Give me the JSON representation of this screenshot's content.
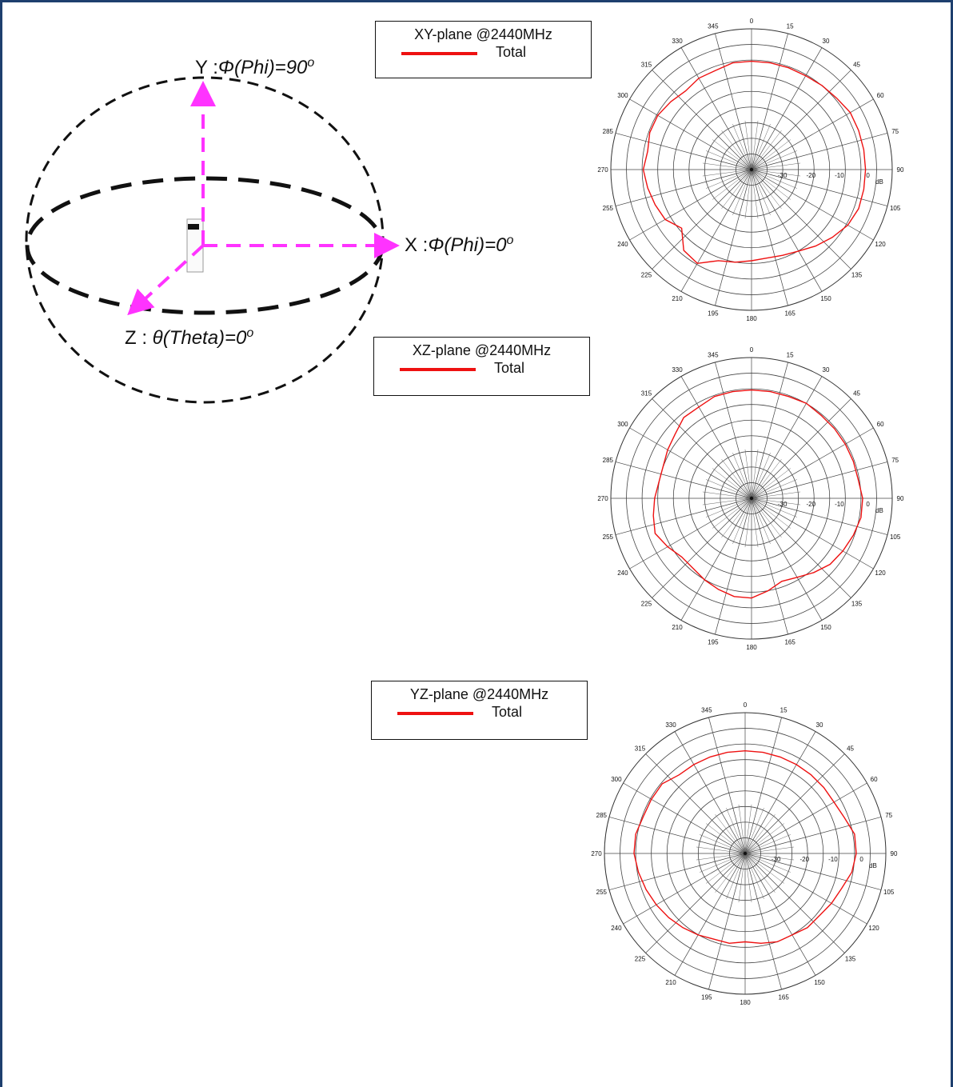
{
  "frame_color": "#1e3f6e",
  "diagram": {
    "y_axis_label": "Y :Φ(Phi)=90º",
    "x_axis_label": "X :Φ(Phi)=0º",
    "z_axis_label": "Z : θ(Theta)=0º",
    "arrow_color": "#ff33ff"
  },
  "chart_data": [
    {
      "type": "polar",
      "title": "XY-plane @2440MHz",
      "series": [
        {
          "name": "Total",
          "color": "#ee1111",
          "angles_deg": [
            0,
            10,
            20,
            30,
            40,
            50,
            60,
            70,
            80,
            90,
            100,
            110,
            120,
            130,
            140,
            150,
            160,
            170,
            180,
            190,
            200,
            210,
            220,
            230,
            240,
            250,
            260,
            270,
            280,
            290,
            300,
            310,
            320,
            330,
            340,
            350
          ],
          "values_db": [
            -2,
            -2,
            -2,
            -2,
            -1.5,
            -1,
            0,
            0,
            0,
            0,
            0,
            0,
            -1,
            -3,
            -5,
            -7,
            -8,
            -8.5,
            -8,
            -7,
            -6,
            -2,
            -3,
            -8,
            -5,
            -4,
            -3,
            -2,
            -3,
            -2,
            -2,
            -3,
            -4,
            -3,
            -3,
            -2
          ]
        }
      ],
      "radial_ticks": [
        -30,
        -20,
        -10,
        0
      ],
      "radial_unit": "dB",
      "r_min": -40,
      "r_max": 0,
      "angle_ticks": [
        "0",
        "15",
        "30",
        "45",
        "60",
        "75",
        "90",
        "105",
        "120",
        "135",
        "150",
        "165",
        "180",
        "195",
        "210",
        "225",
        "240",
        "255",
        "270",
        "285",
        "300",
        "315",
        "330",
        "345"
      ]
    },
    {
      "type": "polar",
      "title": "XZ-plane @2440MHz",
      "series": [
        {
          "name": "Total",
          "color": "#ee1111",
          "angles_deg": [
            0,
            10,
            20,
            30,
            40,
            50,
            60,
            70,
            80,
            90,
            100,
            110,
            120,
            130,
            140,
            150,
            160,
            170,
            180,
            190,
            200,
            210,
            220,
            230,
            240,
            250,
            260,
            270,
            280,
            290,
            300,
            310,
            320,
            330,
            340,
            350
          ],
          "values_db": [
            -2,
            -2,
            -2,
            -1.5,
            -2,
            -2,
            -2,
            -2,
            -2,
            -1,
            -1,
            -2,
            -3,
            -4,
            -6,
            -8,
            -9,
            -7,
            -5,
            -5,
            -6,
            -7,
            -8,
            -8,
            -6,
            -4,
            -5,
            -6,
            -7,
            -7,
            -6,
            -5,
            -3,
            -3,
            -2,
            -2
          ]
        }
      ],
      "radial_ticks": [
        -30,
        -20,
        -10,
        0
      ],
      "radial_unit": "dB",
      "r_min": -40,
      "r_max": 0,
      "angle_ticks": [
        "0",
        "15",
        "30",
        "45",
        "60",
        "75",
        "90",
        "105",
        "120",
        "135",
        "150",
        "165",
        "180",
        "195",
        "210",
        "225",
        "240",
        "255",
        "270",
        "285",
        "300",
        "315",
        "330",
        "345"
      ]
    },
    {
      "type": "polar",
      "title": "YZ-plane @2440MHz",
      "series": [
        {
          "name": "Total",
          "color": "#ee1111",
          "angles_deg": [
            0,
            10,
            20,
            30,
            40,
            50,
            60,
            70,
            80,
            90,
            100,
            110,
            120,
            130,
            140,
            150,
            160,
            170,
            180,
            190,
            200,
            210,
            220,
            230,
            240,
            250,
            260,
            270,
            280,
            290,
            300,
            310,
            320,
            330,
            340,
            350
          ],
          "values_db": [
            -4,
            -4,
            -4,
            -4,
            -4,
            -4,
            -4,
            -3,
            -1,
            -1,
            -2,
            -4,
            -5,
            -6,
            -6,
            -7,
            -7,
            -8,
            -9,
            -8,
            -8,
            -7,
            -6,
            -5,
            -4,
            -3,
            -2,
            -1,
            -1,
            -2,
            -2,
            -2,
            -4,
            -4,
            -4,
            -4
          ]
        }
      ],
      "radial_ticks": [
        -30,
        -20,
        -10,
        0
      ],
      "radial_unit": "dB",
      "r_min": -40,
      "r_max": 0,
      "angle_ticks": [
        "0",
        "15",
        "30",
        "45",
        "60",
        "75",
        "90",
        "105",
        "120",
        "135",
        "150",
        "165",
        "180",
        "195",
        "210",
        "225",
        "240",
        "255",
        "270",
        "285",
        "300",
        "315",
        "330",
        "345"
      ]
    }
  ]
}
